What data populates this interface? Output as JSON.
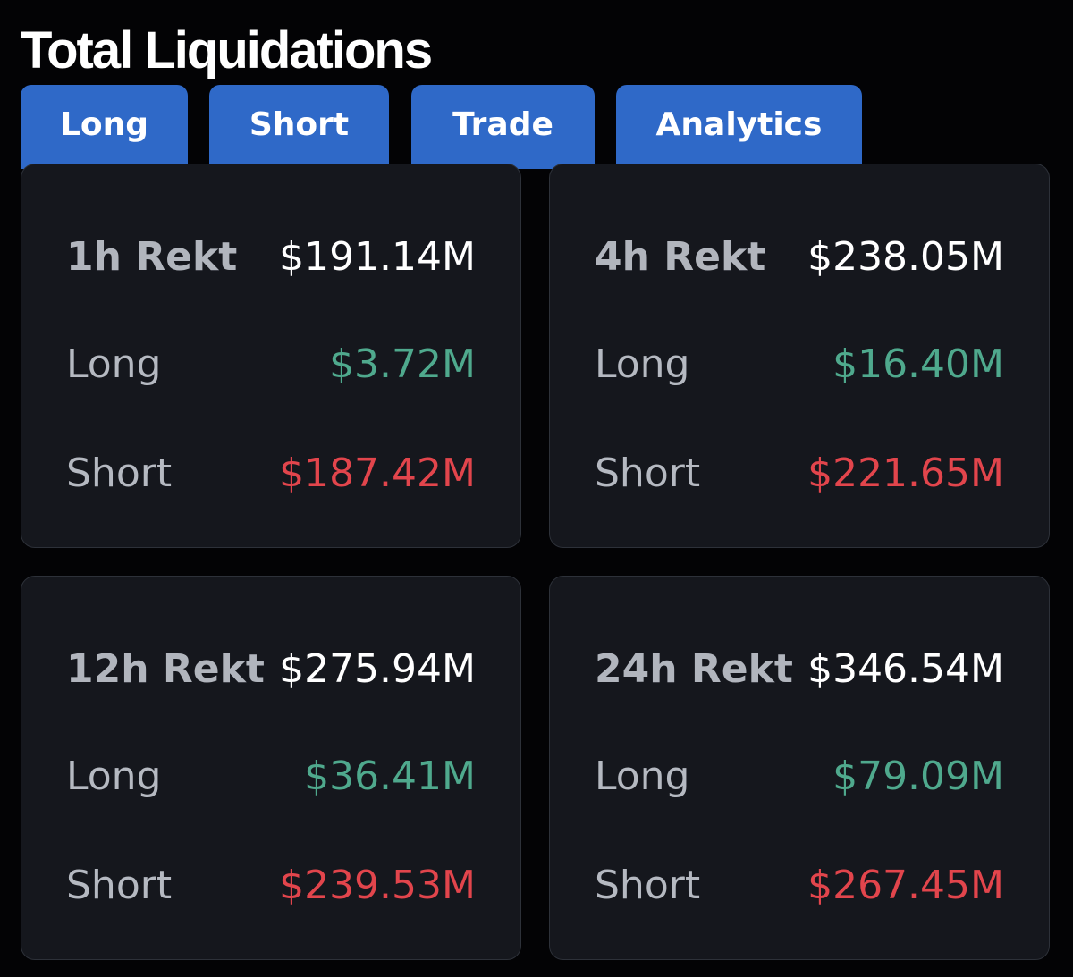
{
  "page": {
    "title": "Total Liquidations"
  },
  "tabs": [
    {
      "label": "Long"
    },
    {
      "label": "Short"
    },
    {
      "label": "Trade"
    },
    {
      "label": "Analytics"
    }
  ],
  "cards": [
    {
      "period_label": "1h Rekt",
      "total": "$191.14M",
      "long_label": "Long",
      "long_value": "$3.72M",
      "short_label": "Short",
      "short_value": "$187.42M"
    },
    {
      "period_label": "4h Rekt",
      "total": "$238.05M",
      "long_label": "Long",
      "long_value": "$16.40M",
      "short_label": "Short",
      "short_value": "$221.65M"
    },
    {
      "period_label": "12h Rekt",
      "total": "$275.94M",
      "long_label": "Long",
      "long_value": "$36.41M",
      "short_label": "Short",
      "short_value": "$239.53M"
    },
    {
      "period_label": "24h Rekt",
      "total": "$346.54M",
      "long_label": "Long",
      "long_value": "$79.09M",
      "short_label": "Short",
      "short_value": "$267.45M"
    }
  ],
  "colors": {
    "background": "#030305",
    "tab": "#2f69c8",
    "card": "#15171d",
    "card_border": "#2d3139",
    "long": "#4fa98d",
    "short": "#e2454c"
  }
}
